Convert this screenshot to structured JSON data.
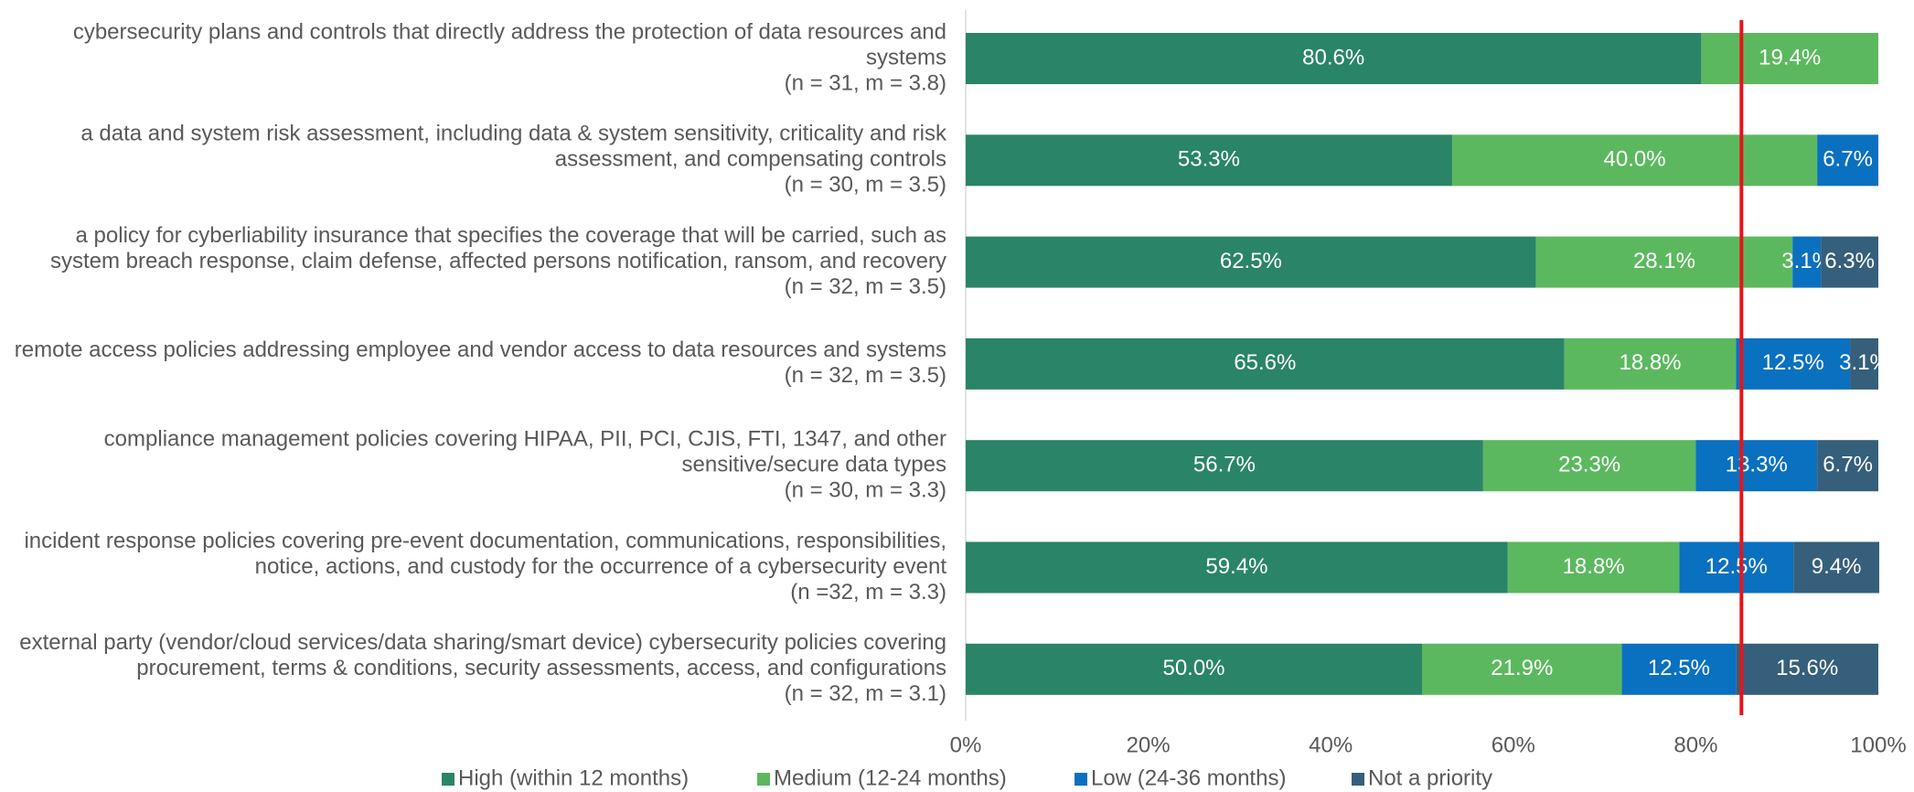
{
  "chart_data": {
    "type": "stacked_barh",
    "categories": [
      [
        "cybersecurity plans and controls that directly address the protection of data resources and",
        "systems",
        "(n = 31, m = 3.8)"
      ],
      [
        "a data and system risk assessment, including data & system sensitivity, criticality and risk",
        "assessment, and compensating controls",
        "(n = 30, m = 3.5)"
      ],
      [
        "a policy for cyberliability insurance that specifies the coverage that will be carried, such as",
        "system breach response, claim defense, affected persons notification, ransom, and recovery",
        "(n = 32, m = 3.5)"
      ],
      [
        "remote access policies addressing employee and vendor access to data resources and systems",
        "(n = 32, m = 3.5)"
      ],
      [
        "compliance management policies covering HIPAA, PII, PCI, CJIS, FTI, 1347, and other",
        "sensitive/secure data types",
        "(n = 30, m = 3.3)"
      ],
      [
        "incident response policies covering pre-event documentation, communications, responsibilities,",
        "notice, actions, and custody for the occurrence of a cybersecurity event",
        "(n =32, m = 3.3)"
      ],
      [
        "external party (vendor/cloud services/data sharing/smart device) cybersecurity policies covering",
        "procurement, terms & conditions, security assessments, access, and configurations",
        "(n = 32, m = 3.1)"
      ]
    ],
    "series": [
      {
        "name": "High (within 12 months)",
        "color": "#2a8468",
        "values": [
          80.6,
          53.3,
          62.5,
          65.6,
          56.7,
          59.4,
          50.0
        ],
        "value_labels": [
          "80.6%",
          "53.3%",
          "62.5%",
          "65.6%",
          "56.7%",
          "59.4%",
          "50.0%"
        ]
      },
      {
        "name": "Medium (12-24 months)",
        "color": "#5cb85f",
        "values": [
          19.4,
          40.0,
          28.1,
          18.8,
          23.3,
          18.8,
          21.9
        ],
        "value_labels": [
          "19.4%",
          "40.0%",
          "28.1%",
          "18.8%",
          "23.3%",
          "18.8%",
          "21.9%"
        ]
      },
      {
        "name": "Low (24-36 months)",
        "color": "#0a70c0",
        "values": [
          null,
          6.7,
          3.1,
          12.5,
          13.3,
          12.5,
          12.5
        ],
        "value_labels": [
          null,
          "6.7%",
          "3.1%",
          "12.5%",
          "13.3%",
          "12.5%",
          "12.5%"
        ]
      },
      {
        "name": "Not a priority",
        "color": "#355f7a",
        "values": [
          null,
          null,
          6.3,
          3.1,
          6.7,
          9.4,
          15.6
        ],
        "value_labels": [
          null,
          null,
          "6.3%",
          "3.1%",
          "6.7%",
          "9.4%",
          "15.6%"
        ]
      }
    ],
    "xlim": [
      0,
      100
    ],
    "xticks": [
      {
        "value": 0,
        "label": "0%"
      },
      {
        "value": 20,
        "label": "20%"
      },
      {
        "value": 40,
        "label": "40%"
      },
      {
        "value": 60,
        "label": "60%"
      },
      {
        "value": 80,
        "label": "80%"
      },
      {
        "value": 100,
        "label": "100%"
      }
    ],
    "reference_line": {
      "value": 85,
      "color": "#e8141b"
    },
    "legend": "bottom"
  }
}
